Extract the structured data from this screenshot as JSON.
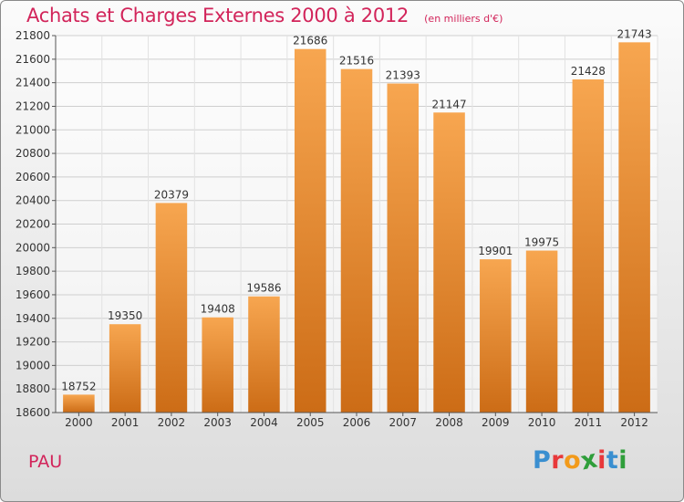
{
  "chart_data": {
    "type": "bar",
    "title": "Achats et Charges Externes 2000 à 2012",
    "subtitle": "(en milliers d'€)",
    "categories": [
      "2000",
      "2001",
      "2002",
      "2003",
      "2004",
      "2005",
      "2006",
      "2007",
      "2008",
      "2009",
      "2010",
      "2011",
      "2012"
    ],
    "values": [
      18752,
      19350,
      20379,
      19408,
      19586,
      21686,
      21516,
      21393,
      21147,
      19901,
      19975,
      21428,
      21743
    ],
    "ylim": [
      18600,
      21800
    ],
    "yticks": [
      18600,
      18800,
      19000,
      19200,
      19400,
      19600,
      19800,
      20000,
      20200,
      20400,
      20600,
      20800,
      21000,
      21200,
      21400,
      21600,
      21800
    ],
    "xlabel": "",
    "ylabel": "",
    "grid": true,
    "legend": "none",
    "colors": {
      "bar_light": "#f7a650",
      "bar_dark": "#cc6c16",
      "title": "#d2245a",
      "axis": "#555555"
    }
  },
  "footer": {
    "place": "PAU"
  },
  "logo": {
    "text": "Proxiti",
    "letter_colors": [
      "#3a8fd0",
      "#e8383a",
      "#f29a1a",
      "#2f9e3a",
      "#e8383a",
      "#3a8fd0",
      "#2f9e3a"
    ]
  }
}
